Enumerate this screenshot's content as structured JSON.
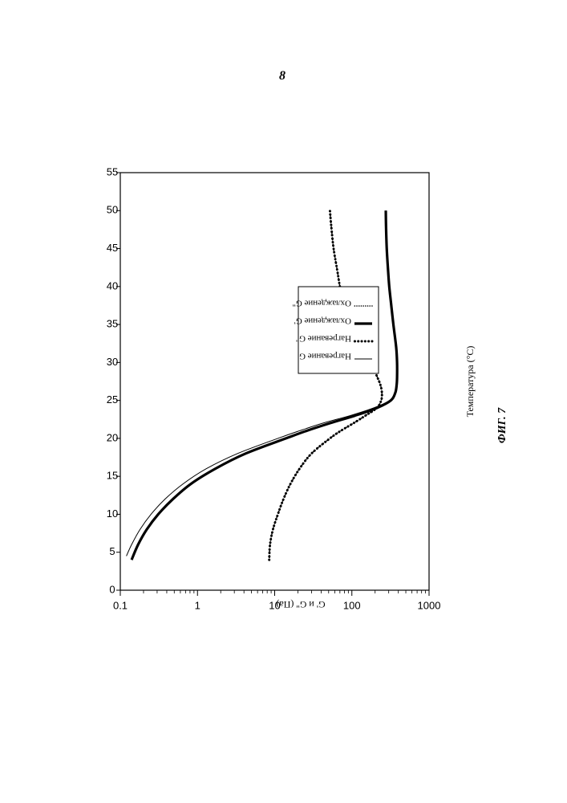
{
  "page": {
    "number": "8"
  },
  "figure_caption": "ФИГ. 7",
  "chart_data": {
    "type": "line",
    "xlabel": "Температура (°C)",
    "ylabel": "G' и G'' (Па)",
    "xlim": [
      0,
      55
    ],
    "ylim": [
      0.1,
      1000
    ],
    "y_scale": "log",
    "x_ticks": [
      0,
      5,
      10,
      15,
      20,
      25,
      30,
      35,
      40,
      45,
      50,
      55
    ],
    "y_ticks": [
      0.1,
      1,
      10,
      100,
      1000
    ],
    "y_tick_labels": [
      "0.1",
      "1",
      "10",
      "100",
      "1000"
    ],
    "legend_position": "inside, center",
    "series": [
      {
        "name": "Нагревание G'",
        "style": "thin-solid",
        "x": [
          4.5,
          6,
          8,
          10,
          12,
          14,
          16,
          18,
          20,
          21,
          22,
          23,
          24,
          25,
          26,
          27,
          28,
          30,
          32,
          35,
          38,
          40,
          42,
          45,
          48,
          50
        ],
        "y": [
          0.12,
          0.14,
          0.18,
          0.25,
          0.38,
          0.65,
          1.3,
          3.3,
          11,
          21,
          42,
          95,
          190,
          310,
          360,
          380,
          385,
          385,
          375,
          345,
          320,
          305,
          295,
          283,
          277,
          275
        ]
      },
      {
        "name": "Нагревание G''",
        "style": "dotted-heavy",
        "x": [
          4,
          6,
          8,
          10,
          12,
          14,
          16,
          18,
          20,
          21,
          22,
          23,
          24,
          25,
          26,
          27,
          28,
          30,
          32,
          34,
          36,
          38,
          40,
          42,
          45,
          48,
          50
        ],
        "y": [
          8.5,
          8.7,
          9.5,
          11,
          13,
          16,
          21,
          30,
          52,
          72,
          105,
          150,
          210,
          240,
          245,
          235,
          215,
          175,
          135,
          108,
          90,
          78,
          70,
          65,
          58,
          54,
          52
        ]
      },
      {
        "name": "Охлаждение G'",
        "style": "thick-solid",
        "x": [
          4,
          6,
          8,
          10,
          12,
          14,
          16,
          18,
          20,
          21,
          22,
          23,
          24,
          25,
          26,
          27,
          28,
          30,
          32,
          35,
          38,
          40,
          42,
          45,
          48,
          50
        ],
        "y": [
          0.14,
          0.17,
          0.22,
          0.31,
          0.48,
          0.82,
          1.7,
          4.2,
          14,
          26,
          52,
          110,
          210,
          320,
          365,
          380,
          385,
          385,
          375,
          345,
          320,
          305,
          295,
          283,
          277,
          275
        ]
      },
      {
        "name": "Охлаждение G''",
        "style": "dotted-fine",
        "x": [
          4,
          6,
          8,
          10,
          12,
          14,
          16,
          18,
          20,
          21,
          22,
          23,
          24,
          25,
          26,
          27,
          28,
          30,
          32,
          34,
          36,
          38,
          40,
          42,
          45,
          48,
          50
        ],
        "y": [
          8.5,
          8.7,
          9.5,
          11,
          13,
          16,
          21,
          30,
          52,
          72,
          105,
          150,
          210,
          240,
          245,
          235,
          215,
          175,
          135,
          108,
          90,
          78,
          70,
          65,
          58,
          54,
          52
        ]
      }
    ]
  }
}
